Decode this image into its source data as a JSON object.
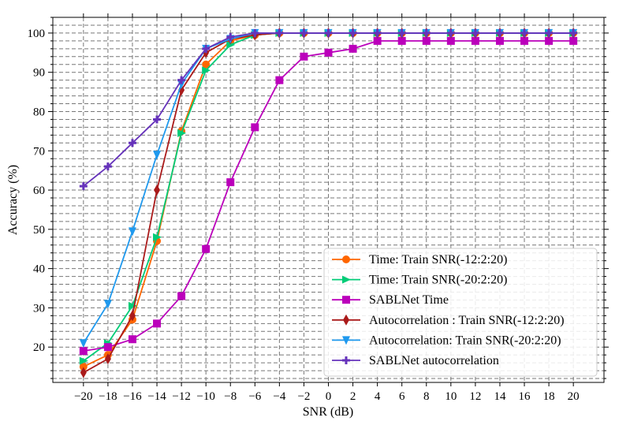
{
  "chart_data": {
    "type": "line",
    "xlabel": "SNR (dB)",
    "ylabel": "Accuracy (%)",
    "x": [
      -20,
      -18,
      -16,
      -14,
      -12,
      -10,
      -8,
      -6,
      -4,
      -2,
      0,
      2,
      4,
      6,
      8,
      10,
      12,
      14,
      16,
      18,
      20
    ],
    "x_tick_labels": [
      "−20",
      "−18",
      "−16",
      "−14",
      "−12",
      "−10",
      "−8",
      "−6",
      "−4",
      "−2",
      "0",
      "2",
      "4",
      "6",
      "8",
      "10",
      "12",
      "14",
      "16",
      "18",
      "20"
    ],
    "y_ticks": [
      20,
      30,
      40,
      50,
      60,
      70,
      80,
      90,
      100
    ],
    "xlim": [
      -22.5,
      22.5
    ],
    "ylim": [
      11,
      104
    ],
    "grid": true,
    "legend_position": "lower-right",
    "series": [
      {
        "name": "Time: Train SNR(-12:2:20)",
        "color": "#ff6600",
        "marker": "circle",
        "values": [
          15,
          18,
          27,
          47,
          75,
          92,
          98,
          99.5,
          100,
          100,
          100,
          100,
          100,
          100,
          100,
          100,
          100,
          100,
          100,
          100,
          100
        ]
      },
      {
        "name": "Time: Train SNR(-20:2:20)",
        "color": "#00cc77",
        "marker": "triangle-right",
        "values": [
          16.5,
          21,
          30.5,
          48,
          74.5,
          90.5,
          97,
          99.5,
          100,
          100,
          100,
          100,
          100,
          100,
          100,
          100,
          100,
          100,
          100,
          100,
          100
        ]
      },
      {
        "name": "SABLNet Time",
        "color": "#bb00bb",
        "marker": "square",
        "values": [
          19,
          20,
          22,
          26,
          33,
          45,
          62,
          76,
          88,
          94,
          95,
          96,
          98,
          98,
          98,
          98,
          98,
          98,
          98,
          98,
          98
        ]
      },
      {
        "name": "Autocorrelation : Train SNR(-12:2:20)",
        "color": "#aa1a1a",
        "marker": "diamond",
        "values": [
          13.5,
          17,
          28,
          60,
          85.5,
          95,
          98.5,
          99.5,
          100,
          100,
          100,
          100,
          100,
          100,
          100,
          100,
          100,
          100,
          100,
          100,
          100
        ]
      },
      {
        "name": "Autocorrelation: Train SNR(-20:2:20)",
        "color": "#1f99ee",
        "marker": "triangle-down",
        "values": [
          21,
          31,
          49.5,
          69,
          87,
          96,
          98.5,
          100,
          100,
          100,
          100,
          100,
          100,
          100,
          100,
          100,
          100,
          100,
          100,
          100,
          100
        ]
      },
      {
        "name": "SABLNet autocorrelation",
        "color": "#6633bb",
        "marker": "plus",
        "values": [
          61,
          66,
          72,
          78,
          88,
          96,
          99,
          100,
          100,
          100,
          100,
          100,
          100,
          100,
          100,
          100,
          100,
          100,
          100,
          100,
          100
        ]
      }
    ]
  }
}
